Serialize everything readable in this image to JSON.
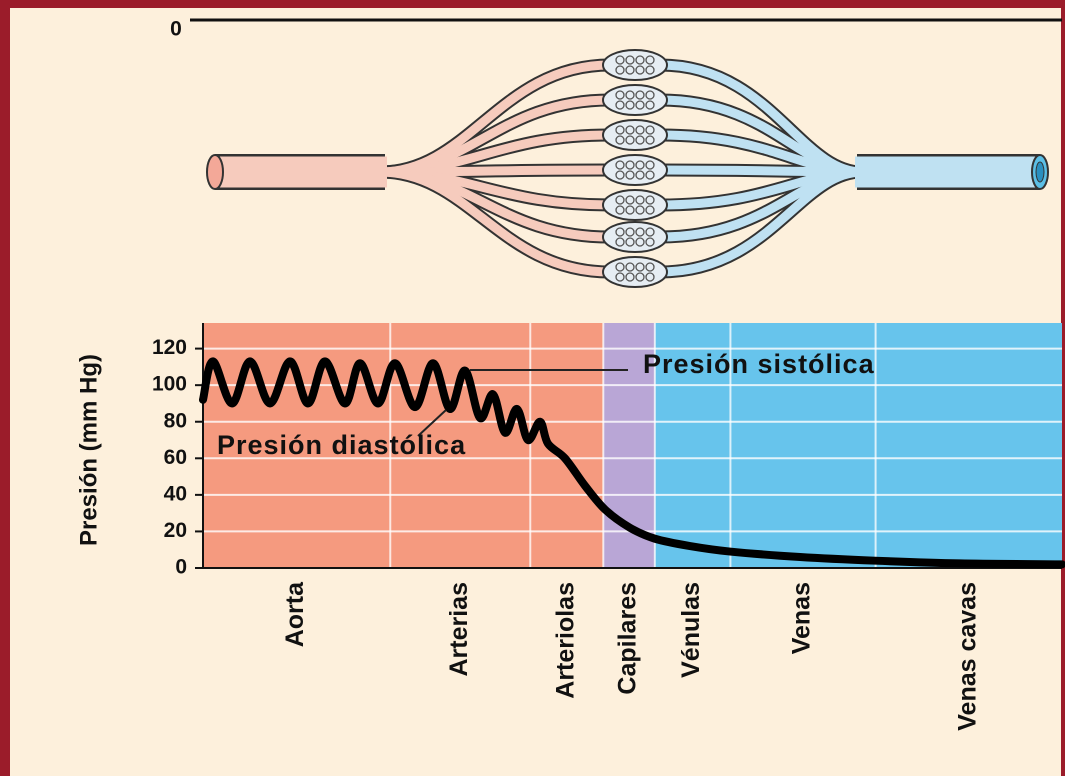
{
  "clipped_label": "0",
  "chart_data": {
    "type": "line",
    "y_label": "Presión (mm Hg)",
    "ylim": [
      0,
      134
    ],
    "yticks": [
      0,
      20,
      40,
      60,
      80,
      100,
      120
    ],
    "xlim": [
      0,
      100
    ],
    "grid": true,
    "categories": [
      "Aorta",
      "Arterias",
      "Arteriolas",
      "Capilares",
      "Vénulas",
      "Venas",
      "Venas cavas"
    ],
    "category_edges": [
      0,
      21.8,
      38.1,
      46.6,
      52.6,
      61.4,
      78.3,
      100
    ],
    "category_colors": [
      "#f59a7f",
      "#f59a7f",
      "#f59a7f",
      "#b9a6d6",
      "#67c4ec",
      "#67c4ec",
      "#67c4ec"
    ],
    "color": "#000000",
    "x": [
      0,
      1.16,
      3.38,
      5.47,
      7.8,
      10.13,
      12.22,
      14.2,
      16.53,
      18.28,
      20.37,
      22.35,
      24.68,
      26.78,
      28.75,
      30.5,
      32.25,
      33.76,
      35.16,
      36.55,
      37.83,
      39.23,
      40.16,
      42.14,
      44.47,
      46.8,
      49.71,
      52.62,
      56.69,
      61.35,
      69.5,
      78.23,
      88.13,
      100
    ],
    "values": [
      92,
      113,
      90,
      113,
      90,
      113,
      90,
      113,
      90,
      112,
      90,
      112,
      88,
      112,
      87,
      108,
      82,
      95,
      74,
      87,
      70,
      80,
      68,
      60,
      45,
      32,
      22,
      16,
      12,
      9,
      6,
      4,
      2.5,
      2
    ],
    "annotations": [
      {
        "text": "Presión sistólica"
      },
      {
        "text": "Presión diastólica"
      }
    ]
  }
}
